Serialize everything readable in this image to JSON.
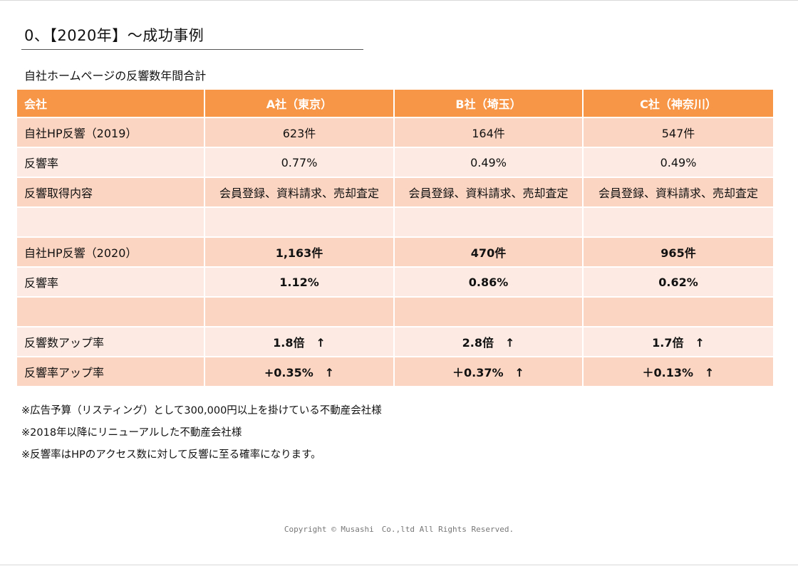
{
  "title": "0、【2020年】～成功事例",
  "subtitle": "自社ホームページの反響数年間合計",
  "table": {
    "headers": [
      "会社",
      "A社（東京）",
      "B社（埼玉）",
      "C社（神奈川）"
    ],
    "rows": [
      [
        "自社HP反響（2019）",
        "623件",
        "164件",
        "547件"
      ],
      [
        "反響率",
        "0.77%",
        "0.49%",
        "0.49%"
      ],
      [
        "反響取得内容",
        "会員登録、資料請求、売却査定",
        "会員登録、資料請求、売却査定",
        "会員登録、資料請求、売却査定"
      ],
      [
        "",
        "",
        "",
        ""
      ],
      [
        "自社HP反響（2020）",
        "1,163件",
        "470件",
        "965件"
      ],
      [
        "反響率",
        "1.12%",
        "0.86%",
        "0.62%"
      ],
      [
        "",
        "",
        "",
        ""
      ],
      [
        "反響数アップ率",
        "1.8倍　↑",
        "2.8倍　↑",
        "1.7倍　↑"
      ],
      [
        "反響率アップ率",
        "+0.35%　↑",
        "＋0.37%　↑",
        "＋0.13%　↑"
      ]
    ]
  },
  "notes": [
    "※広告予算（リスティング）として300,000円以上を掛けている不動産会社様",
    "※2018年以降にリニューアルした不動産会社様",
    "※反響率はHPのアクセス数に対して反響に至る確率になります。"
  ],
  "copyright": "Copyright © Musashi　Co.,ltd All Rights Reserved.",
  "colors": {
    "header": "#f79646",
    "row_odd": "#fcd5c2",
    "row_even": "#fdeae2",
    "highlight": "#ff0000"
  }
}
